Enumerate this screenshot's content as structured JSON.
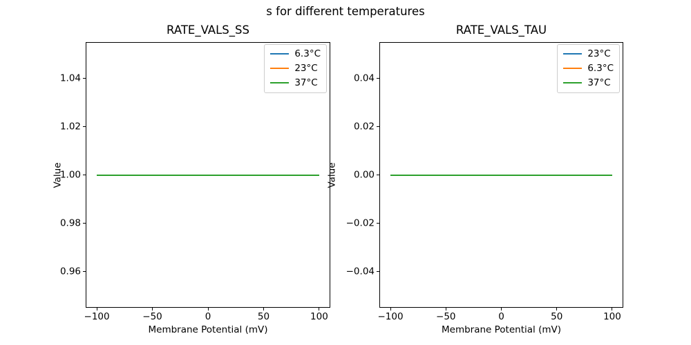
{
  "figure": {
    "suptitle": "s for different temperatures",
    "background_color": "#ffffff",
    "text_color": "#000000",
    "axis_color": "#000000"
  },
  "chart_data": [
    {
      "type": "line",
      "title": "RATE_VALS_SS",
      "xlabel": "Membrane Potential (mV)",
      "ylabel": "Value",
      "xlim": [
        -110,
        110
      ],
      "ylim": [
        0.945,
        1.055
      ],
      "grid": false,
      "legend_position": "upper right",
      "xticks": {
        "values": [
          -100,
          -50,
          0,
          50,
          100
        ],
        "labels": [
          "−100",
          "−50",
          "0",
          "50",
          "100"
        ]
      },
      "yticks": {
        "values": [
          0.96,
          0.98,
          1.0,
          1.02,
          1.04
        ],
        "labels": [
          "0.96",
          "0.98",
          "1.00",
          "1.02",
          "1.04"
        ]
      },
      "series": [
        {
          "name": "6.3°C",
          "color": "#1f77b4",
          "x": [
            -100,
            100
          ],
          "y": [
            1.0,
            1.0
          ]
        },
        {
          "name": "23°C",
          "color": "#ff7f0e",
          "x": [
            -100,
            100
          ],
          "y": [
            1.0,
            1.0
          ]
        },
        {
          "name": "37°C",
          "color": "#2ca02c",
          "x": [
            -100,
            100
          ],
          "y": [
            1.0,
            1.0
          ]
        }
      ]
    },
    {
      "type": "line",
      "title": "RATE_VALS_TAU",
      "xlabel": "Membrane Potential (mV)",
      "ylabel": "Value",
      "xlim": [
        -110,
        110
      ],
      "ylim": [
        -0.055,
        0.055
      ],
      "grid": false,
      "legend_position": "upper right",
      "xticks": {
        "values": [
          -100,
          -50,
          0,
          50,
          100
        ],
        "labels": [
          "−100",
          "−50",
          "0",
          "50",
          "100"
        ]
      },
      "yticks": {
        "values": [
          -0.04,
          -0.02,
          0.0,
          0.02,
          0.04
        ],
        "labels": [
          "−0.04",
          "−0.02",
          "0.00",
          "0.02",
          "0.04"
        ]
      },
      "series": [
        {
          "name": "23°C",
          "color": "#1f77b4",
          "x": [
            -100,
            100
          ],
          "y": [
            0.0,
            0.0
          ]
        },
        {
          "name": "6.3°C",
          "color": "#ff7f0e",
          "x": [
            -100,
            100
          ],
          "y": [
            0.0,
            0.0
          ]
        },
        {
          "name": "37°C",
          "color": "#2ca02c",
          "x": [
            -100,
            100
          ],
          "y": [
            0.0,
            0.0
          ]
        }
      ]
    }
  ]
}
